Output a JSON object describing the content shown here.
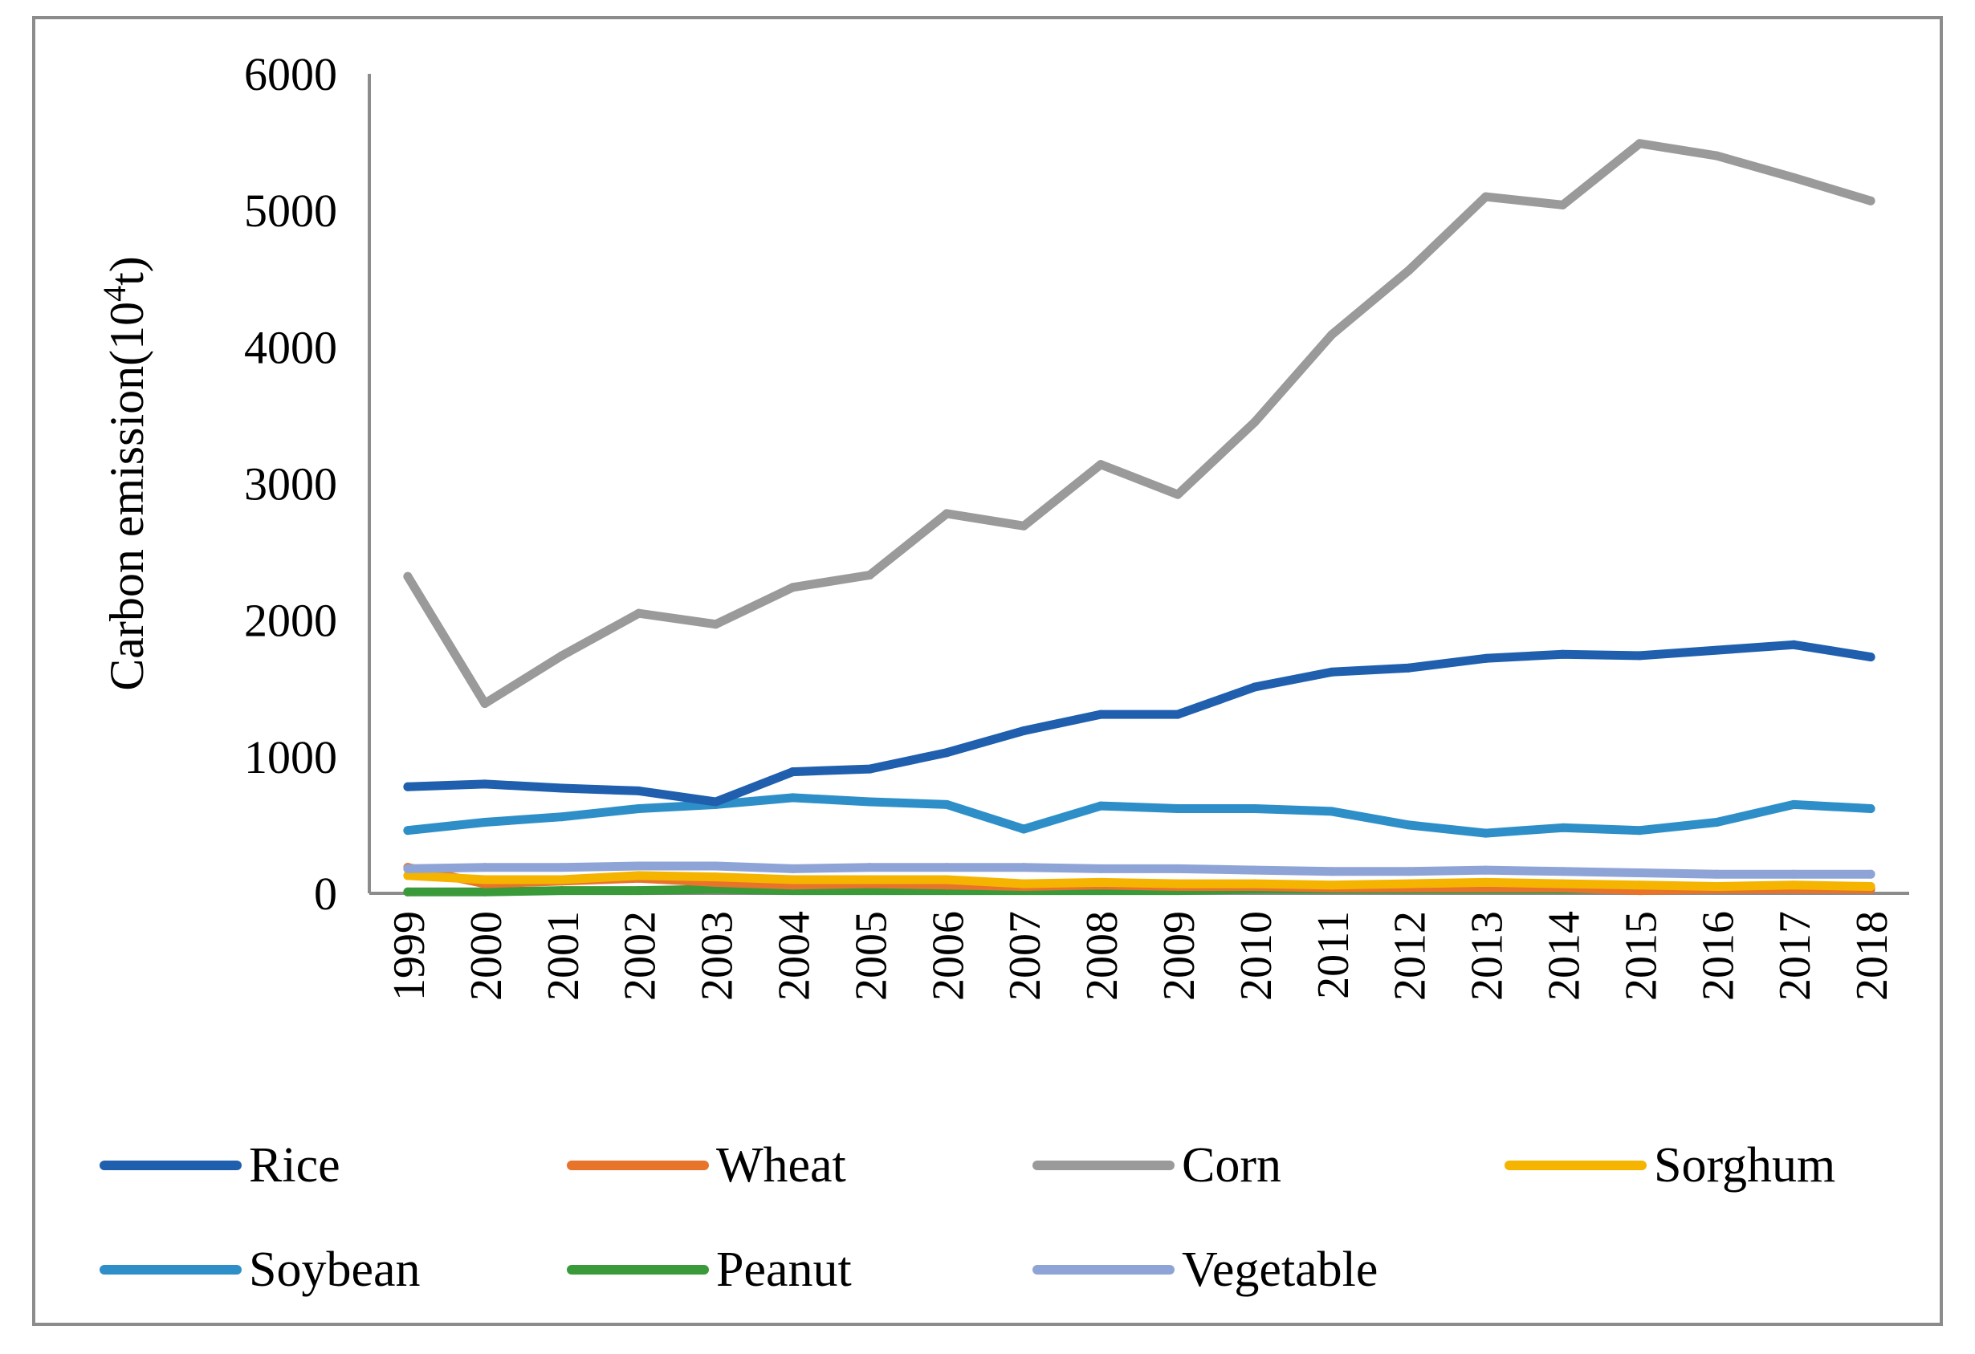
{
  "chart_data": {
    "type": "line",
    "title": "",
    "xlabel": "",
    "ylabel": "Carbon emission(10",
    "ylabel_sup": "4",
    "ylabel_suffix": "t)",
    "ylim": [
      0,
      6000
    ],
    "yticks": [
      0,
      1000,
      2000,
      3000,
      4000,
      5000,
      6000
    ],
    "grid": false,
    "legend_position": "bottom",
    "categories": [
      "1999",
      "2000",
      "2001",
      "2002",
      "2003",
      "2004",
      "2005",
      "2006",
      "2007",
      "2008",
      "2009",
      "2010",
      "2011",
      "2012",
      "2013",
      "2014",
      "2015",
      "2016",
      "2017",
      "2018"
    ],
    "series": [
      {
        "name": "Rice",
        "color": "#1f5fae",
        "values": [
          780,
          800,
          770,
          750,
          670,
          890,
          910,
          1030,
          1190,
          1310,
          1310,
          1510,
          1620,
          1650,
          1720,
          1750,
          1740,
          1780,
          1820,
          1730
        ]
      },
      {
        "name": "Wheat",
        "color": "#e8732a",
        "values": [
          190,
          70,
          90,
          110,
          80,
          60,
          70,
          60,
          50,
          60,
          50,
          50,
          40,
          40,
          40,
          40,
          20,
          30,
          30,
          30
        ]
      },
      {
        "name": "Corn",
        "color": "#9a9a9a",
        "values": [
          2320,
          1390,
          1740,
          2050,
          1970,
          2240,
          2330,
          2780,
          2690,
          3140,
          2920,
          3450,
          4090,
          4560,
          5100,
          5040,
          5490,
          5400,
          5240,
          5070
        ]
      },
      {
        "name": "Sorghum",
        "color": "#f5b400",
        "values": [
          130,
          100,
          100,
          130,
          120,
          100,
          100,
          100,
          70,
          80,
          70,
          70,
          60,
          70,
          80,
          70,
          60,
          50,
          60,
          50
        ]
      },
      {
        "name": "Soybean",
        "color": "#2e8fc8",
        "values": [
          460,
          520,
          560,
          620,
          650,
          700,
          670,
          650,
          470,
          640,
          620,
          620,
          600,
          500,
          440,
          480,
          460,
          520,
          650,
          620
        ]
      },
      {
        "name": "Peanut",
        "color": "#3a9a3a",
        "values": [
          10,
          10,
          20,
          20,
          30,
          20,
          20,
          20,
          20,
          20,
          20,
          30,
          30,
          30,
          30,
          30,
          30,
          30,
          40,
          40
        ]
      },
      {
        "name": "Vegetable",
        "color": "#8fa4d6",
        "values": [
          180,
          190,
          190,
          200,
          200,
          180,
          190,
          190,
          190,
          180,
          180,
          170,
          160,
          160,
          170,
          160,
          150,
          140,
          140,
          140
        ]
      }
    ]
  }
}
